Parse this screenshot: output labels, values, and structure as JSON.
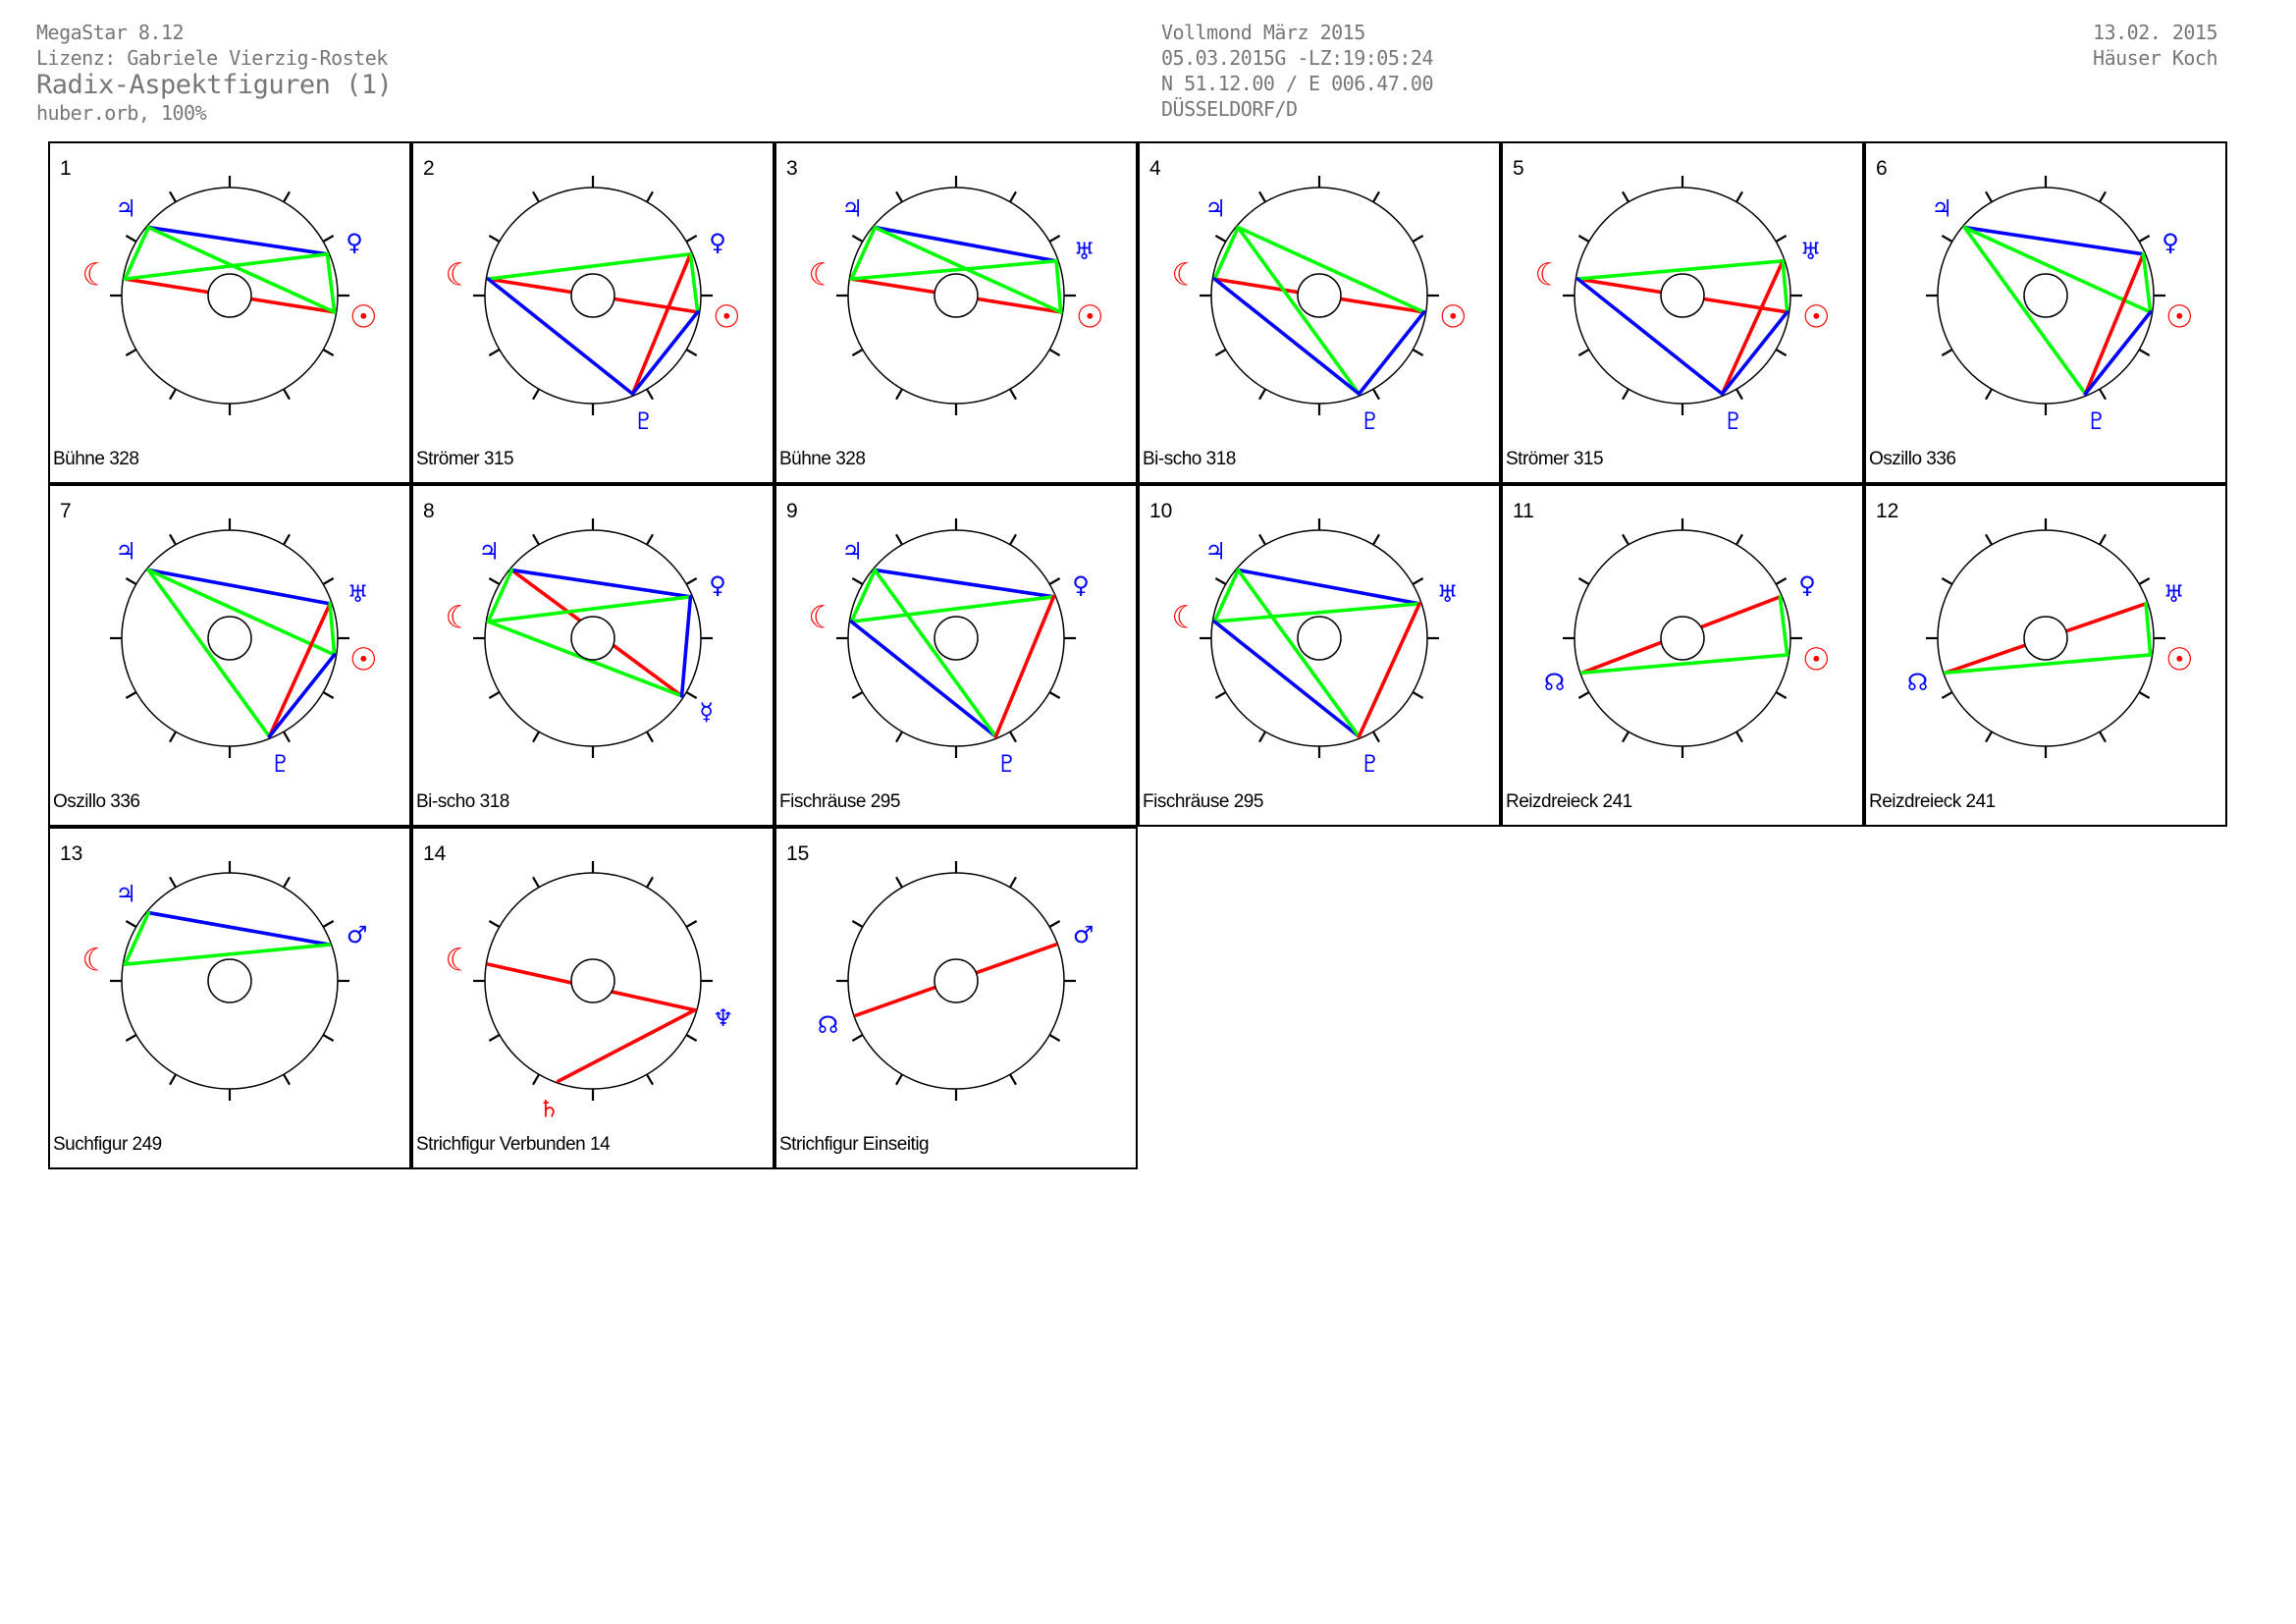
{
  "header": {
    "app": "MegaStar 8.12",
    "license": "Lizenz: Gabriele Vierzig-Rostek",
    "title": "Radix-Aspektfiguren (1)",
    "orb": "huber.orb, 100%",
    "event": "Vollmond März 2015",
    "datetime": "05.03.2015G -LZ:19:05:24",
    "coords": "N 51.12.00 / E 006.47.00",
    "place": "DÜSSELDORF/D",
    "date": "13.02. 2015",
    "houses": "Häuser Koch"
  },
  "colors": {
    "red": "#ff0000",
    "green": "#00ff00",
    "blue": "#0000ff",
    "grey": "#777777"
  },
  "planets": {
    "Mo": {
      "name": "moon-icon",
      "symbol": "☾",
      "color": "red",
      "longitude_deg": 171
    },
    "Su": {
      "name": "sun-icon",
      "symbol": "☉",
      "color": "red",
      "longitude_deg": 351
    },
    "Ju": {
      "name": "jupiter-icon",
      "symbol": "♃",
      "color": "blue",
      "longitude_deg": 140
    },
    "Ve": {
      "name": "venus-icon",
      "symbol": "♀",
      "color": "blue",
      "longitude_deg": 23
    },
    "Ur": {
      "name": "uranus-icon",
      "symbol": "♅",
      "color": "blue",
      "longitude_deg": 19
    },
    "Pl": {
      "name": "pluto-icon",
      "symbol": "♇",
      "color": "blue",
      "longitude_deg": 292
    },
    "Me": {
      "name": "mercury-icon",
      "symbol": "☿",
      "color": "blue",
      "longitude_deg": 327
    },
    "Ma": {
      "name": "mars-icon",
      "symbol": "♂",
      "color": "blue",
      "longitude_deg": 20
    },
    "Ne": {
      "name": "neptune-icon",
      "symbol": "♆",
      "color": "blue",
      "longitude_deg": 344
    },
    "Sa": {
      "name": "saturn-icon",
      "symbol": "♄",
      "color": "red",
      "longitude_deg": 251
    },
    "No": {
      "name": "node-icon",
      "symbol": "☊",
      "color": "blue",
      "longitude_deg": 199
    }
  },
  "figures": [
    {
      "num": "1",
      "label": "Bühne 328",
      "planets": [
        "Ju",
        "Mo",
        "Ve",
        "Su"
      ],
      "lines": [
        [
          "Mo",
          "Su",
          "red"
        ],
        [
          "Ju",
          "Ve",
          "blue"
        ],
        [
          "Mo",
          "Ju",
          "green"
        ],
        [
          "Mo",
          "Ve",
          "green"
        ],
        [
          "Ju",
          "Su",
          "green"
        ],
        [
          "Ve",
          "Su",
          "green"
        ]
      ]
    },
    {
      "num": "2",
      "label": "Strömer 315",
      "planets": [
        "Mo",
        "Ve",
        "Su",
        "Pl"
      ],
      "lines": [
        [
          "Mo",
          "Su",
          "red"
        ],
        [
          "Mo",
          "Ve",
          "green"
        ],
        [
          "Mo",
          "Pl",
          "blue"
        ],
        [
          "Ve",
          "Pl",
          "red"
        ],
        [
          "Ve",
          "Su",
          "green"
        ],
        [
          "Su",
          "Pl",
          "blue"
        ]
      ]
    },
    {
      "num": "3",
      "label": "Bühne 328",
      "planets": [
        "Ju",
        "Mo",
        "Ur",
        "Su"
      ],
      "lines": [
        [
          "Mo",
          "Su",
          "red"
        ],
        [
          "Ju",
          "Ur",
          "blue"
        ],
        [
          "Mo",
          "Ju",
          "green"
        ],
        [
          "Mo",
          "Ur",
          "green"
        ],
        [
          "Ju",
          "Su",
          "green"
        ],
        [
          "Ur",
          "Su",
          "green"
        ]
      ]
    },
    {
      "num": "4",
      "label": "Bi-scho 318",
      "planets": [
        "Ju",
        "Mo",
        "Su",
        "Pl"
      ],
      "lines": [
        [
          "Mo",
          "Su",
          "red"
        ],
        [
          "Mo",
          "Ju",
          "green"
        ],
        [
          "Ju",
          "Su",
          "green"
        ],
        [
          "Ju",
          "Pl",
          "green"
        ],
        [
          "Mo",
          "Pl",
          "blue"
        ],
        [
          "Su",
          "Pl",
          "blue"
        ]
      ]
    },
    {
      "num": "5",
      "label": "Strömer 315",
      "planets": [
        "Mo",
        "Ur",
        "Su",
        "Pl"
      ],
      "lines": [
        [
          "Mo",
          "Su",
          "red"
        ],
        [
          "Mo",
          "Ur",
          "green"
        ],
        [
          "Mo",
          "Pl",
          "blue"
        ],
        [
          "Ur",
          "Pl",
          "red"
        ],
        [
          "Ur",
          "Su",
          "green"
        ],
        [
          "Su",
          "Pl",
          "blue"
        ]
      ]
    },
    {
      "num": "6",
      "label": "Oszillo 336",
      "planets": [
        "Ju",
        "Ve",
        "Su",
        "Pl"
      ],
      "lines": [
        [
          "Ju",
          "Ve",
          "blue"
        ],
        [
          "Ju",
          "Su",
          "green"
        ],
        [
          "Ju",
          "Pl",
          "green"
        ],
        [
          "Ve",
          "Pl",
          "red"
        ],
        [
          "Ve",
          "Su",
          "green"
        ],
        [
          "Su",
          "Pl",
          "blue"
        ]
      ]
    },
    {
      "num": "7",
      "label": "Oszillo 336",
      "planets": [
        "Ju",
        "Ur",
        "Su",
        "Pl"
      ],
      "lines": [
        [
          "Ju",
          "Ur",
          "blue"
        ],
        [
          "Ju",
          "Su",
          "green"
        ],
        [
          "Ju",
          "Pl",
          "green"
        ],
        [
          "Ur",
          "Pl",
          "red"
        ],
        [
          "Ur",
          "Su",
          "green"
        ],
        [
          "Su",
          "Pl",
          "blue"
        ]
      ]
    },
    {
      "num": "8",
      "label": "Bi-scho 318",
      "planets": [
        "Ju",
        "Mo",
        "Ve",
        "Me"
      ],
      "lines": [
        [
          "Ju",
          "Me",
          "red"
        ],
        [
          "Ju",
          "Ve",
          "blue"
        ],
        [
          "Mo",
          "Ju",
          "green"
        ],
        [
          "Mo",
          "Ve",
          "green"
        ],
        [
          "Mo",
          "Me",
          "green"
        ],
        [
          "Ve",
          "Me",
          "blue"
        ]
      ]
    },
    {
      "num": "9",
      "label": "Fischräuse 295",
      "planets": [
        "Ju",
        "Mo",
        "Ve",
        "Pl"
      ],
      "lines": [
        [
          "Ju",
          "Ve",
          "blue"
        ],
        [
          "Mo",
          "Ju",
          "green"
        ],
        [
          "Mo",
          "Ve",
          "green"
        ],
        [
          "Mo",
          "Pl",
          "blue"
        ],
        [
          "Ju",
          "Pl",
          "green"
        ],
        [
          "Ve",
          "Pl",
          "red"
        ]
      ]
    },
    {
      "num": "10",
      "label": "Fischräuse 295",
      "planets": [
        "Ju",
        "Mo",
        "Ur",
        "Pl"
      ],
      "lines": [
        [
          "Ju",
          "Ur",
          "blue"
        ],
        [
          "Mo",
          "Ju",
          "green"
        ],
        [
          "Mo",
          "Ur",
          "green"
        ],
        [
          "Mo",
          "Pl",
          "blue"
        ],
        [
          "Ju",
          "Pl",
          "green"
        ],
        [
          "Ur",
          "Pl",
          "red"
        ]
      ]
    },
    {
      "num": "11",
      "label": "Reizdreieck 241",
      "planets": [
        "No",
        "Ve",
        "Su"
      ],
      "lines": [
        [
          "No",
          "Ve",
          "red"
        ],
        [
          "No",
          "Su",
          "green"
        ],
        [
          "Ve",
          "Su",
          "green"
        ]
      ]
    },
    {
      "num": "12",
      "label": "Reizdreieck 241",
      "planets": [
        "No",
        "Ur",
        "Su"
      ],
      "lines": [
        [
          "No",
          "Ur",
          "red"
        ],
        [
          "No",
          "Su",
          "green"
        ],
        [
          "Ur",
          "Su",
          "green"
        ]
      ]
    },
    {
      "num": "13",
      "label": "Suchfigur 249",
      "planets": [
        "Ju",
        "Mo",
        "Ma"
      ],
      "lines": [
        [
          "Ju",
          "Ma",
          "blue"
        ],
        [
          "Mo",
          "Ju",
          "green"
        ],
        [
          "Mo",
          "Ma",
          "green"
        ]
      ]
    },
    {
      "num": "14",
      "label": "Strichfigur Verbunden 14",
      "planets": [
        "Mo",
        "Ne",
        "Sa"
      ],
      "lines": [
        [
          "Mo",
          "Ne",
          "red"
        ],
        [
          "Ne",
          "Sa",
          "red"
        ]
      ]
    },
    {
      "num": "15",
      "label": "Strichfigur Einseitig",
      "planets": [
        "No",
        "Ma"
      ],
      "lines": [
        [
          "No",
          "Ma",
          "red"
        ]
      ]
    }
  ]
}
